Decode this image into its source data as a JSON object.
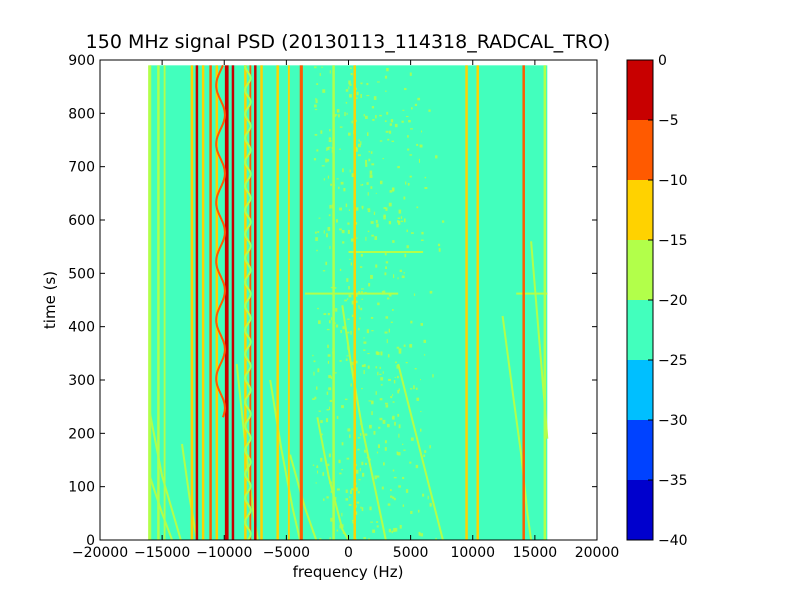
{
  "chart_data": {
    "type": "heatmap",
    "title": "150 MHz signal PSD (20130113_114318_RADCAL_TRO)",
    "xlabel": "frequency (Hz)",
    "ylabel": "time (s)",
    "xlim": [
      -20000,
      20000
    ],
    "ylim": [
      0,
      900
    ],
    "data_extent": {
      "x": [
        -16000,
        16000
      ],
      "y": [
        0,
        890
      ]
    },
    "xticks": [
      -20000,
      -15000,
      -10000,
      -5000,
      0,
      5000,
      10000,
      15000,
      20000
    ],
    "xtick_labels": [
      "−20000",
      "−15000",
      "−10000",
      "−5000",
      "0",
      "5000",
      "10000",
      "15000",
      "20000"
    ],
    "yticks": [
      0,
      100,
      200,
      300,
      400,
      500,
      600,
      700,
      800,
      900
    ],
    "ytick_labels": [
      "0",
      "100",
      "200",
      "300",
      "400",
      "500",
      "600",
      "700",
      "800",
      "900"
    ],
    "background_level_db": -22.5,
    "colorbar": {
      "levels": [
        -40,
        -35,
        -30,
        -25,
        -20,
        -15,
        -10,
        -5,
        0
      ],
      "tick_labels": [
        "−40",
        "−35",
        "−30",
        "−25",
        "−20",
        "−15",
        "−10",
        "−5",
        "0"
      ],
      "colors": [
        "#0000cd",
        "#0042ff",
        "#00bfff",
        "#42ffbd",
        "#b2ff4a",
        "#ffd200",
        "#ff5a00",
        "#c80000"
      ]
    },
    "vertical_features": [
      {
        "freq": -16000,
        "db": -17.5,
        "width": 250
      },
      {
        "freq": -15300,
        "db": -17.5,
        "width": 200
      },
      {
        "freq": -14800,
        "db": -17.5,
        "width": 150
      },
      {
        "freq": -12600,
        "db": -12.5,
        "width": 200
      },
      {
        "freq": -12200,
        "db": -2.5,
        "width": 200
      },
      {
        "freq": -11700,
        "db": -12.5,
        "width": 200
      },
      {
        "freq": -11100,
        "db": -7.5,
        "width": 200
      },
      {
        "freq": -10600,
        "db": -12.5,
        "width": 200
      },
      {
        "freq": -9800,
        "db": -2.5,
        "width": 300
      },
      {
        "freq": -9300,
        "db": -2.5,
        "width": 200
      },
      {
        "freq": -8300,
        "db": -12.5,
        "width": 200
      },
      {
        "freq": -7900,
        "db": -7.5,
        "width": 150
      },
      {
        "freq": -7500,
        "db": -2.5,
        "width": 200
      },
      {
        "freq": -7000,
        "db": -12.5,
        "width": 200
      },
      {
        "freq": -5700,
        "db": -12.5,
        "width": 200
      },
      {
        "freq": -4800,
        "db": -12.5,
        "width": 150
      },
      {
        "freq": -3800,
        "db": -7.5,
        "width": 250
      },
      {
        "freq": -1200,
        "db": -17.5,
        "width": 200
      },
      {
        "freq": 500,
        "db": -12.5,
        "width": 200
      },
      {
        "freq": 9500,
        "db": -12.5,
        "width": 200
      },
      {
        "freq": 10400,
        "db": -12.5,
        "width": 200
      },
      {
        "freq": 14100,
        "db": -7.5,
        "width": 200
      },
      {
        "freq": 15800,
        "db": -17.5,
        "width": 200
      }
    ],
    "wavy_features": [
      {
        "center": -10300,
        "amplitude": 350,
        "period": 110,
        "db": -7.5,
        "t_min": 230,
        "t_max": 890
      },
      {
        "center": -8100,
        "amplitude": 220,
        "period": 45,
        "db": -17.5,
        "t_min": 0,
        "t_max": 890
      }
    ],
    "drift_tracks": [
      {
        "points": [
          [
            -16000,
            240
          ],
          [
            -15000,
            120
          ],
          [
            -14000,
            40
          ],
          [
            -13500,
            0
          ]
        ],
        "db": -17.5
      },
      {
        "points": [
          [
            -16000,
            120
          ],
          [
            -15000,
            50
          ],
          [
            -14200,
            0
          ]
        ],
        "db": -17.5
      },
      {
        "points": [
          [
            -13400,
            180
          ],
          [
            -12800,
            80
          ],
          [
            -12200,
            0
          ]
        ],
        "db": -17.5
      },
      {
        "points": [
          [
            -9000,
            330
          ],
          [
            -8400,
            200
          ],
          [
            -7700,
            60
          ],
          [
            -7300,
            0
          ]
        ],
        "db": -17.5
      },
      {
        "points": [
          [
            -6300,
            300
          ],
          [
            -5400,
            170
          ],
          [
            -4500,
            60
          ],
          [
            -3900,
            0
          ]
        ],
        "db": -17.5
      },
      {
        "points": [
          [
            -4700,
            160
          ],
          [
            -3500,
            60
          ],
          [
            -2600,
            0
          ]
        ],
        "db": -17.5
      },
      {
        "points": [
          [
            -500,
            440
          ],
          [
            200,
            330
          ],
          [
            1100,
            210
          ],
          [
            2200,
            90
          ],
          [
            3000,
            0
          ]
        ],
        "db": -17.5
      },
      {
        "points": [
          [
            -2500,
            230
          ],
          [
            -1600,
            120
          ],
          [
            -500,
            20
          ],
          [
            0,
            0
          ]
        ],
        "db": -17.5
      },
      {
        "points": [
          [
            4000,
            330
          ],
          [
            5300,
            210
          ],
          [
            6500,
            100
          ],
          [
            7600,
            0
          ]
        ],
        "db": -17.5
      },
      {
        "points": [
          [
            12400,
            420
          ],
          [
            13200,
            280
          ],
          [
            13900,
            160
          ],
          [
            14400,
            50
          ],
          [
            14700,
            0
          ]
        ],
        "db": -17.5
      },
      {
        "points": [
          [
            14700,
            560
          ],
          [
            15300,
            390
          ],
          [
            15800,
            250
          ],
          [
            16000,
            190
          ]
        ],
        "db": -17.5
      }
    ],
    "horizontal_features": [
      {
        "time": 462,
        "f_min": -3500,
        "f_max": 4000,
        "db": -17.5
      },
      {
        "time": 462,
        "f_min": 13500,
        "f_max": 16000,
        "db": -17.5
      },
      {
        "time": 540,
        "f_min": 0,
        "f_max": 6000,
        "db": -17.5
      }
    ],
    "noise_region": {
      "f_min": -3000,
      "f_max": 8000,
      "db": -17.5
    }
  }
}
